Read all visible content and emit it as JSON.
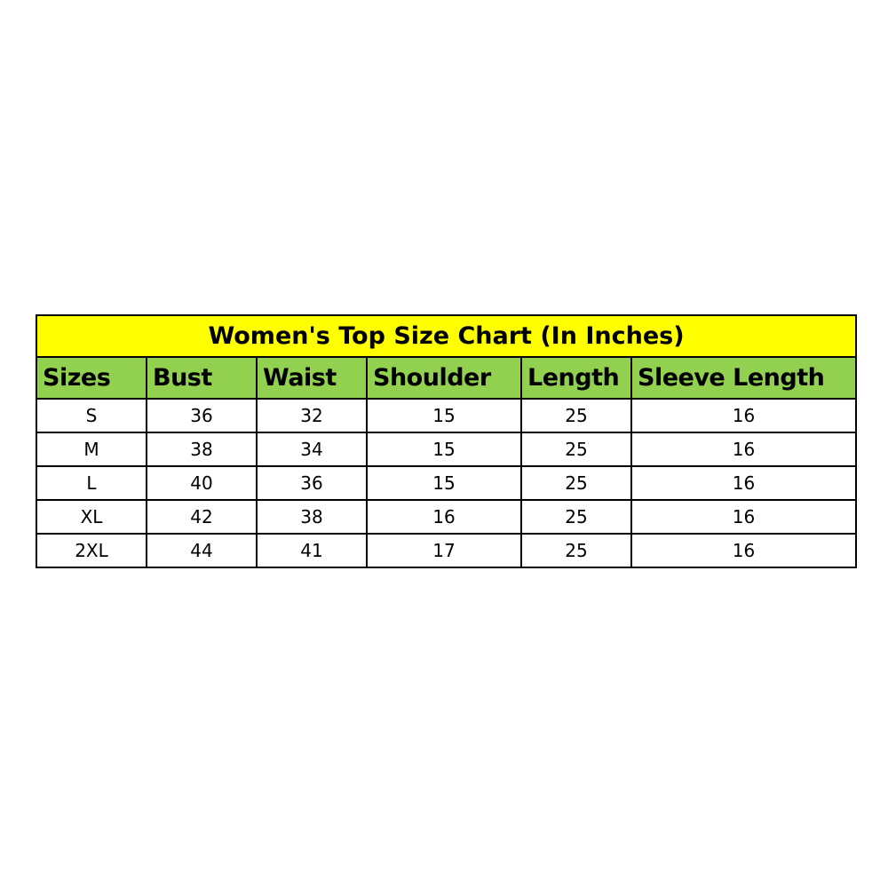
{
  "title": "Women's Top Size Chart (In Inches)",
  "colors": {
    "title_bg": "#FFFF00",
    "header_bg": "#92D050"
  },
  "headers": [
    "Sizes",
    "Bust",
    "Waist",
    "Shoulder",
    "Length",
    "Sleeve Length"
  ],
  "rows": [
    [
      "S",
      "36",
      "32",
      "15",
      "25",
      "16"
    ],
    [
      "M",
      "38",
      "34",
      "15",
      "25",
      "16"
    ],
    [
      "L",
      "40",
      "36",
      "15",
      "25",
      "16"
    ],
    [
      "XL",
      "42",
      "38",
      "16",
      "25",
      "16"
    ],
    [
      "2XL",
      "44",
      "41",
      "17",
      "25",
      "16"
    ]
  ]
}
